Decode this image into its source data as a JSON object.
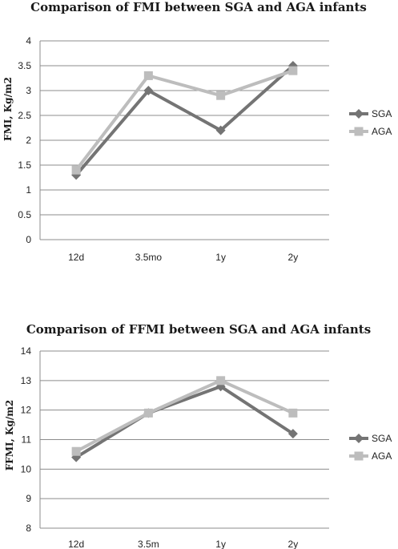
{
  "chart_data": [
    {
      "type": "line",
      "title": "Comparison of FMI between SGA and AGA infants",
      "xlabel": "",
      "ylabel": "FMI, Kg/m2",
      "categories": [
        "12d",
        "3.5mo",
        "1y",
        "2y"
      ],
      "ylim": [
        0,
        4
      ],
      "yticks": [
        0,
        0.5,
        1,
        1.5,
        2,
        2.5,
        3,
        3.5,
        4
      ],
      "grid": true,
      "legend": "right",
      "series": [
        {
          "name": "SGA",
          "values": [
            1.3,
            3.0,
            2.2,
            3.5
          ],
          "color": "#747474",
          "marker": "diamond"
        },
        {
          "name": "AGA",
          "values": [
            1.4,
            3.3,
            2.9,
            3.4
          ],
          "color": "#bdbdbd",
          "marker": "square"
        }
      ]
    },
    {
      "type": "line",
      "title": "Comparison of FFMI between SGA and AGA infants",
      "xlabel": "",
      "ylabel": "FFMI, Kg/m2",
      "categories": [
        "12d",
        "3.5m",
        "1y",
        "2y"
      ],
      "ylim": [
        8,
        14
      ],
      "yticks": [
        8,
        9,
        10,
        11,
        12,
        13,
        14
      ],
      "grid": true,
      "legend": "right",
      "series": [
        {
          "name": "SGA",
          "values": [
            10.4,
            11.9,
            12.8,
            11.2
          ],
          "color": "#747474",
          "marker": "diamond"
        },
        {
          "name": "AGA",
          "values": [
            10.6,
            11.9,
            13.0,
            11.9
          ],
          "color": "#bdbdbd",
          "marker": "square"
        }
      ]
    }
  ]
}
